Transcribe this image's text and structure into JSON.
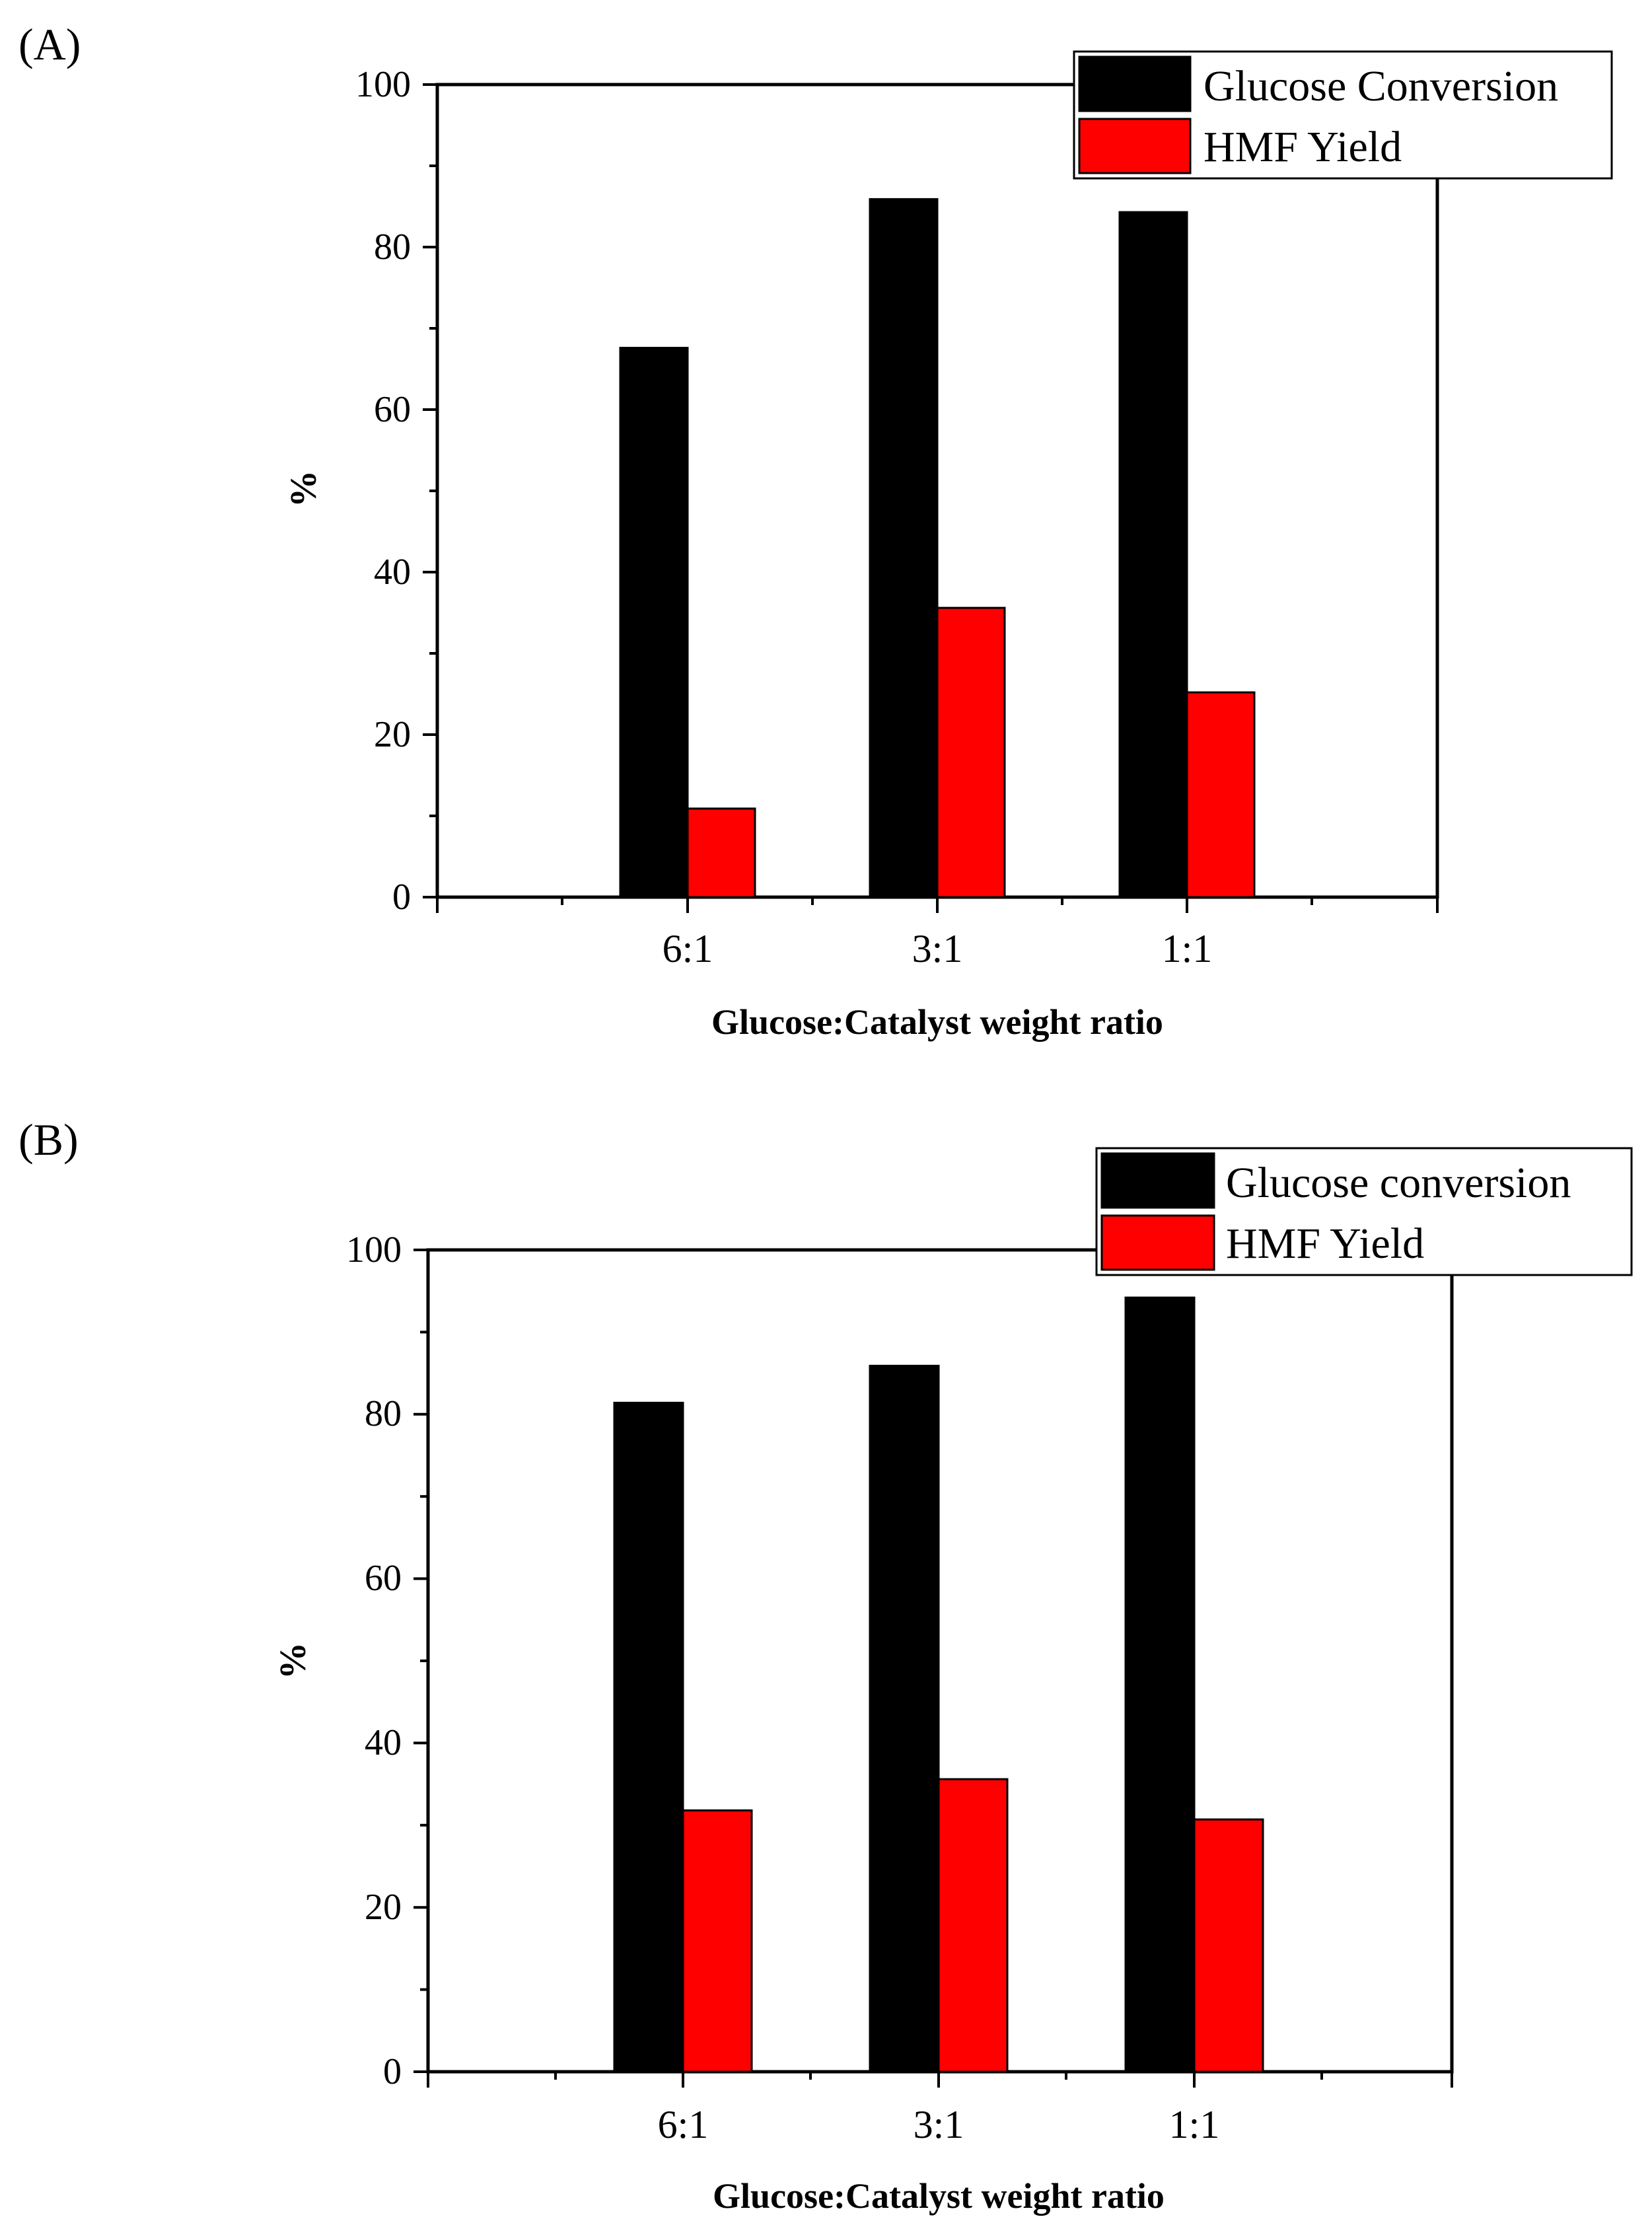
{
  "panels": {
    "a": {
      "label": "(A)",
      "legend": [
        "Glucose Conversion",
        "HMF Yield"
      ]
    },
    "b": {
      "label": "(B)",
      "legend": [
        "Glucose conversion",
        "HMF Yield"
      ]
    }
  },
  "chart_data": [
    {
      "id": "a",
      "type": "bar",
      "panel_label": "(A)",
      "categories": [
        "6:1",
        "3:1",
        "1:1"
      ],
      "series": [
        {
          "name": "Glucose Conversion",
          "color": "#000000",
          "values": [
            67.6,
            85.9,
            84.3
          ]
        },
        {
          "name": "HMF Yield",
          "color": "#ff0000",
          "values": [
            10.9,
            35.6,
            25.2
          ]
        }
      ],
      "xlabel": "Glucose:Catalyst weight ratio",
      "ylabel": "%",
      "ylim": [
        0,
        100
      ],
      "yticks": [
        0,
        20,
        40,
        60,
        80,
        100
      ],
      "legend_position": "top-right"
    },
    {
      "id": "b",
      "type": "bar",
      "panel_label": "(B)",
      "categories": [
        "6:1",
        "3:1",
        "1:1"
      ],
      "series": [
        {
          "name": "Glucose conversion",
          "color": "#000000",
          "values": [
            81.4,
            85.9,
            94.2
          ]
        },
        {
          "name": "HMF Yield",
          "color": "#ff0000",
          "values": [
            31.8,
            35.6,
            30.7
          ]
        }
      ],
      "xlabel": "Glucose:Catalyst weight ratio",
      "ylabel": "%",
      "ylim": [
        0,
        100
      ],
      "yticks": [
        0,
        20,
        40,
        60,
        80,
        100
      ],
      "legend_position": "top-right"
    }
  ]
}
